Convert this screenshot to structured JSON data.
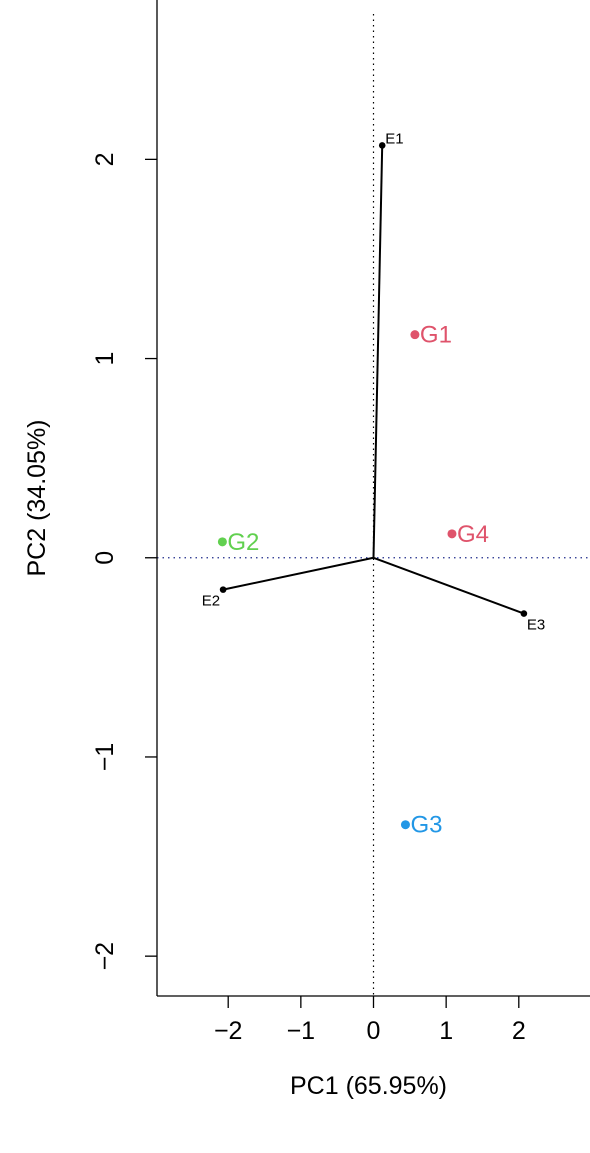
{
  "chart_data": {
    "type": "scatter",
    "title": "",
    "xlabel": "PC1 (65.95%)",
    "ylabel": "PC2 (34.05%)",
    "xlim": [
      -2.98,
      2.98
    ],
    "ylim": [
      -2.2,
      2.8
    ],
    "xticks": [
      -2,
      -1,
      0,
      1,
      2
    ],
    "yticks": [
      -2,
      -1,
      0,
      1,
      2
    ],
    "xtick_labels": [
      "−2",
      "−1",
      "0",
      "1",
      "2"
    ],
    "ytick_labels": [
      "−2",
      "−1",
      "0",
      "1",
      "2"
    ],
    "reference_lines": {
      "x": 0,
      "y": 0
    },
    "grid": false,
    "environments": [
      {
        "name": "E1",
        "x": 0.12,
        "y": 2.07
      },
      {
        "name": "E2",
        "x": -2.07,
        "y": -0.16
      },
      {
        "name": "E3",
        "x": 2.07,
        "y": -0.28
      }
    ],
    "genotypes": [
      {
        "name": "G1",
        "x": 0.57,
        "y": 1.12,
        "color": "#df536b"
      },
      {
        "name": "G2",
        "x": -2.08,
        "y": 0.08,
        "color": "#61d04f"
      },
      {
        "name": "G3",
        "x": 0.44,
        "y": -1.34,
        "color": "#2297e6"
      },
      {
        "name": "G4",
        "x": 1.08,
        "y": 0.12,
        "color": "#df536b"
      }
    ]
  }
}
